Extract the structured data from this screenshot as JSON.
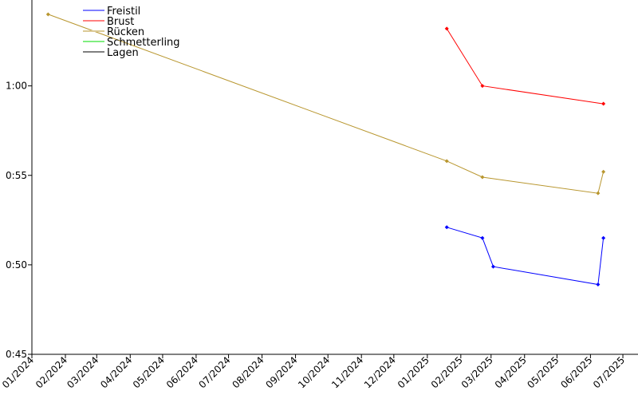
{
  "chart_data": {
    "type": "line",
    "title": "",
    "xlabel": "",
    "ylabel": "",
    "x_ticks": [
      "01/2024",
      "02/2024",
      "03/2024",
      "04/2024",
      "05/2024",
      "06/2024",
      "07/2024",
      "08/2024",
      "09/2024",
      "10/2024",
      "11/2024",
      "12/2024",
      "01/2025",
      "02/2025",
      "03/2025",
      "04/2025",
      "05/2025",
      "06/2025",
      "07/2025"
    ],
    "y_ticks": [
      "0:45",
      "0:50",
      "0:55",
      "1:00"
    ],
    "x_range": [
      "2024-01-01",
      "2025-07-15"
    ],
    "y_range_seconds": [
      45,
      64.8
    ],
    "legend_position": "top-left",
    "grid": false,
    "series": [
      {
        "name": "Freistil",
        "color": "#0000ff",
        "points": [
          {
            "x": "2025-01-19",
            "y": 52.1
          },
          {
            "x": "2025-02-21",
            "y": 51.5
          },
          {
            "x": "2025-03-03",
            "y": 49.9
          },
          {
            "x": "2025-06-08",
            "y": 48.9
          },
          {
            "x": "2025-06-13",
            "y": 51.5
          }
        ]
      },
      {
        "name": "Brust",
        "color": "#ff0000",
        "points": [
          {
            "x": "2025-01-19",
            "y": 63.2
          },
          {
            "x": "2025-02-21",
            "y": 60.0
          },
          {
            "x": "2025-06-13",
            "y": 59.0
          }
        ]
      },
      {
        "name": "Rücken",
        "color": "#b8962e",
        "points": [
          {
            "x": "2024-01-16",
            "y": 64.0
          },
          {
            "x": "2025-01-19",
            "y": 55.8
          },
          {
            "x": "2025-02-21",
            "y": 54.9
          },
          {
            "x": "2025-06-08",
            "y": 54.0
          },
          {
            "x": "2025-06-13",
            "y": 55.2
          }
        ]
      },
      {
        "name": "Schmetterling",
        "color": "#00dd00",
        "points": []
      },
      {
        "name": "Lagen",
        "color": "#000000",
        "points": []
      }
    ]
  }
}
